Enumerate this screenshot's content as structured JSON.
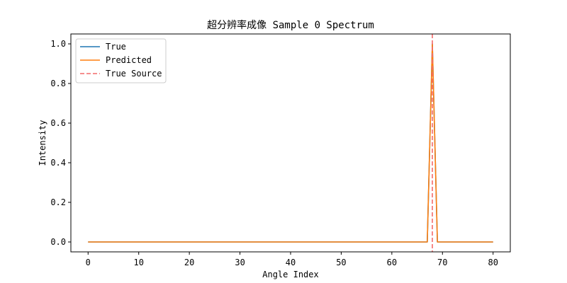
{
  "chart_data": {
    "type": "line",
    "title": "超分辨率成像 Sample 0 Spectrum",
    "xlabel": "Angle Index",
    "ylabel": "Intensity",
    "xlim": [
      -3.4,
      83.4
    ],
    "ylim": [
      -0.05,
      1.05
    ],
    "xticks": [
      0,
      10,
      20,
      30,
      40,
      50,
      60,
      70,
      80
    ],
    "yticks": [
      0.0,
      0.2,
      0.4,
      0.6,
      0.8,
      1.0
    ],
    "xtick_labels": [
      "0",
      "10",
      "20",
      "30",
      "40",
      "50",
      "60",
      "70",
      "80"
    ],
    "ytick_labels": [
      "0.0",
      "0.2",
      "0.4",
      "0.6",
      "0.8",
      "1.0"
    ],
    "grid": false,
    "legend_position": "top-left",
    "x": [
      0,
      1,
      2,
      3,
      4,
      5,
      6,
      7,
      8,
      9,
      10,
      11,
      12,
      13,
      14,
      15,
      16,
      17,
      18,
      19,
      20,
      21,
      22,
      23,
      24,
      25,
      26,
      27,
      28,
      29,
      30,
      31,
      32,
      33,
      34,
      35,
      36,
      37,
      38,
      39,
      40,
      41,
      42,
      43,
      44,
      45,
      46,
      47,
      48,
      49,
      50,
      51,
      52,
      53,
      54,
      55,
      56,
      57,
      58,
      59,
      60,
      61,
      62,
      63,
      64,
      65,
      66,
      67,
      68,
      69,
      70,
      71,
      72,
      73,
      74,
      75,
      76,
      77,
      78,
      79,
      80
    ],
    "series": [
      {
        "name": "True",
        "color": "#1f77b4",
        "style": "solid",
        "values": [
          0,
          0,
          0,
          0,
          0,
          0,
          0,
          0,
          0,
          0,
          0,
          0,
          0,
          0,
          0,
          0,
          0,
          0,
          0,
          0,
          0,
          0,
          0,
          0,
          0,
          0,
          0,
          0,
          0,
          0,
          0,
          0,
          0,
          0,
          0,
          0,
          0,
          0,
          0,
          0,
          0,
          0,
          0,
          0,
          0,
          0,
          0,
          0,
          0,
          0,
          0,
          0,
          0,
          0,
          0,
          0,
          0,
          0,
          0,
          0,
          0,
          0,
          0,
          0,
          0,
          0,
          0,
          0,
          1,
          0,
          0,
          0,
          0,
          0,
          0,
          0,
          0,
          0,
          0,
          0,
          0
        ]
      },
      {
        "name": "Predicted",
        "color": "#ff7f0e",
        "style": "solid",
        "values": [
          0,
          0,
          0,
          0,
          0,
          0,
          0,
          0,
          0,
          0,
          0,
          0,
          0,
          0,
          0,
          0,
          0,
          0,
          0,
          0,
          0,
          0,
          0,
          0,
          0,
          0,
          0,
          0,
          0,
          0,
          0,
          0,
          0,
          0,
          0,
          0,
          0,
          0,
          0,
          0,
          0,
          0,
          0,
          0,
          0,
          0,
          0,
          0,
          0,
          0,
          0,
          0,
          0,
          0,
          0,
          0,
          0,
          0,
          0,
          0,
          0,
          0,
          0,
          0,
          0,
          0,
          0,
          0,
          1,
          0,
          0,
          0,
          0,
          0,
          0,
          0,
          0,
          0,
          0,
          0,
          0
        ]
      }
    ],
    "vlines": [
      {
        "name": "True Source",
        "x": 68,
        "color": "#f46a6a",
        "style": "dashed"
      }
    ],
    "legend": [
      {
        "label": "True",
        "color": "#1f77b4",
        "style": "solid"
      },
      {
        "label": "Predicted",
        "color": "#ff7f0e",
        "style": "solid"
      },
      {
        "label": "True Source",
        "color": "#f46a6a",
        "style": "dashed"
      }
    ]
  }
}
